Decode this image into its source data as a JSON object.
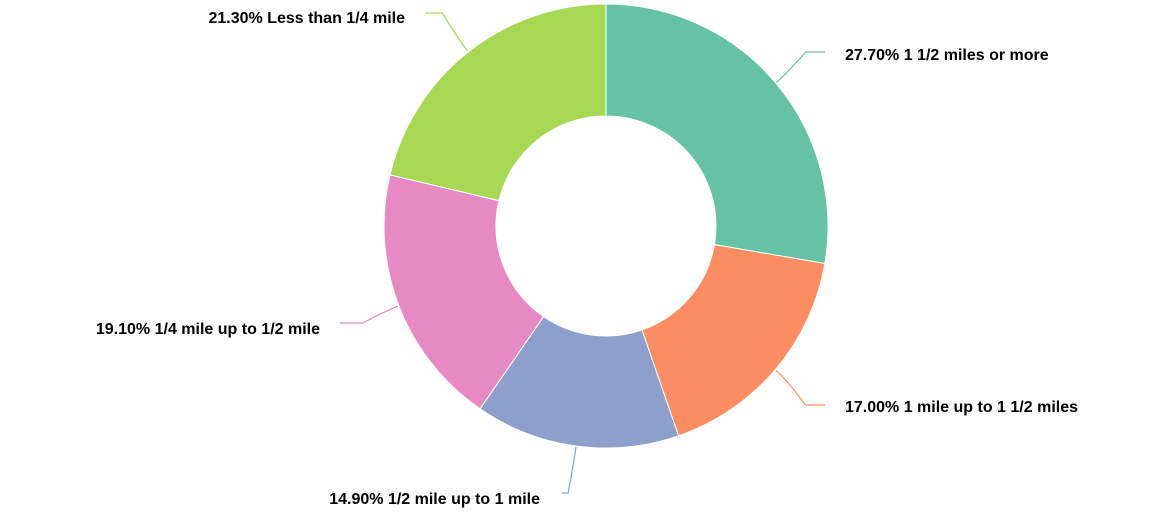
{
  "chart_data": {
    "type": "pie",
    "donut": true,
    "title": "",
    "slices": [
      {
        "label": "27.70% 1 1/2 miles or more",
        "name": "1 1/2 miles or more",
        "value": 27.7,
        "color": "#66c2a5"
      },
      {
        "label": "17.00% 1 mile up to 1 1/2 miles",
        "name": "1 mile up to 1 1/2 miles",
        "value": 17.0,
        "color": "#fc8d62"
      },
      {
        "label": "14.90% 1/2 mile up to 1 mile",
        "name": "1/2 mile up to 1 mile",
        "value": 14.9,
        "color": "#8da0cb"
      },
      {
        "label": "19.10% 1/4 mile up to 1/2 mile",
        "name": "1/4 mile up to 1/2 mile",
        "value": 19.1,
        "color": "#e78ac3"
      },
      {
        "label": "21.30% Less than 1/4 mile",
        "name": "Less than 1/4 mile",
        "value": 21.3,
        "color": "#a6d854"
      }
    ],
    "start_angle": "12 o'clock",
    "direction": "clockwise",
    "legend": "none",
    "label_placement": "outside with leader lines"
  }
}
